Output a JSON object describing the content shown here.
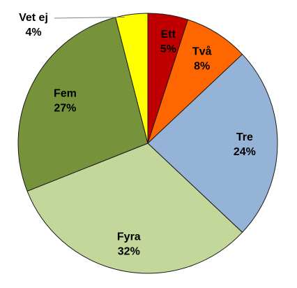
{
  "chart_data": {
    "type": "pie",
    "start_angle_deg": -90,
    "direction": "clockwise",
    "slices": [
      {
        "name": "Ett",
        "value": 5,
        "percent_label": "5%",
        "color": "#C00000"
      },
      {
        "name": "Två",
        "value": 8,
        "percent_label": "8%",
        "color": "#FF6600"
      },
      {
        "name": "Tre",
        "value": 24,
        "percent_label": "24%",
        "color": "#95B3D7"
      },
      {
        "name": "Fyra",
        "value": 32,
        "percent_label": "32%",
        "color": "#C4D79B"
      },
      {
        "name": "Fem",
        "value": 27,
        "percent_label": "27%",
        "color": "#76933C"
      },
      {
        "name": "Vet ej",
        "value": 4,
        "percent_label": "4%",
        "color": "#FFFF00"
      }
    ],
    "legend": "none",
    "data_labels": "category and percent"
  }
}
